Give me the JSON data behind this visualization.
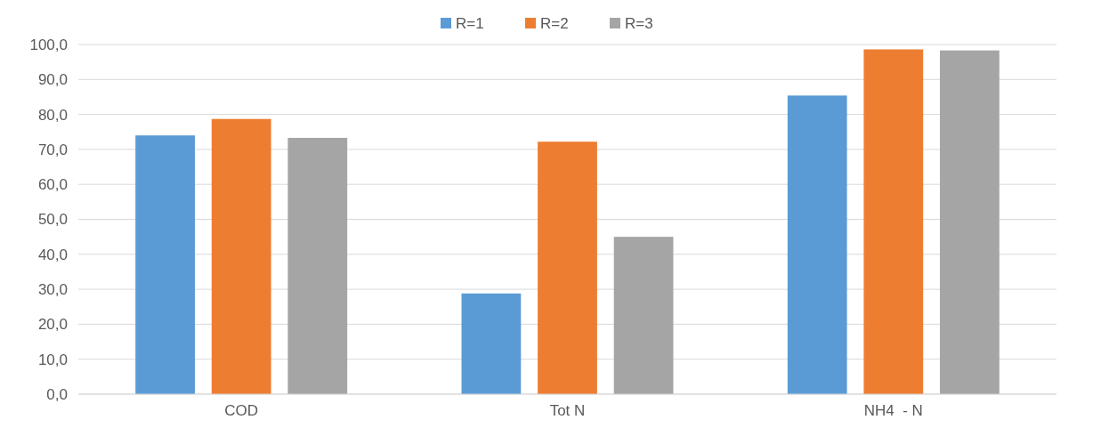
{
  "chart_data": {
    "type": "bar",
    "categories": [
      "COD",
      "Tot N",
      "NH4  - N"
    ],
    "series": [
      {
        "name": "R=1",
        "color": "#5b9bd5",
        "values": [
          74.0,
          28.8,
          85.4
        ]
      },
      {
        "name": "R=2",
        "color": "#ed7d31",
        "values": [
          78.7,
          72.2,
          98.6
        ]
      },
      {
        "name": "R=3",
        "color": "#a5a5a5",
        "values": [
          73.3,
          45.0,
          98.3
        ]
      }
    ],
    "ylim": [
      0,
      100
    ],
    "yticks": [
      {
        "value": 0,
        "label": "0,0"
      },
      {
        "value": 10,
        "label": "10,0"
      },
      {
        "value": 20,
        "label": "20,0"
      },
      {
        "value": 30,
        "label": "30,0"
      },
      {
        "value": 40,
        "label": "40,0"
      },
      {
        "value": 50,
        "label": "50,0"
      },
      {
        "value": 60,
        "label": "60,0"
      },
      {
        "value": 70,
        "label": "70,0"
      },
      {
        "value": 80,
        "label": "80,0"
      },
      {
        "value": 90,
        "label": "90,0"
      },
      {
        "value": 100,
        "label": "100,0"
      }
    ],
    "grid": "y",
    "legend": "top"
  }
}
